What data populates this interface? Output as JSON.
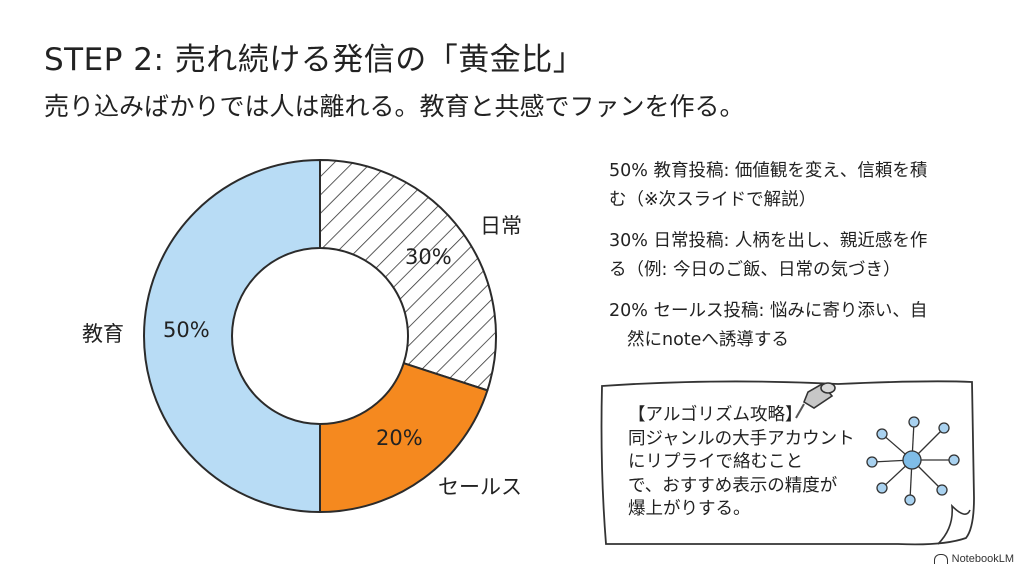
{
  "slide": {
    "title": "STEP 2: 売れ続ける発信の「黄金比」",
    "subtitle": "売り込みばかりでは人は離れる。教育と共感でファンを作る。"
  },
  "chart_data": {
    "type": "pie",
    "donut": true,
    "categories": [
      "教育",
      "日常",
      "セールス"
    ],
    "values": [
      50,
      30,
      20
    ],
    "value_labels": [
      "50%",
      "30%",
      "20%"
    ],
    "colors": [
      "#b8dcf5",
      "hatch",
      "#f5891f"
    ]
  },
  "notes": [
    {
      "lines": [
        "50% 教育投稿: 価値観を変え、信頼を積",
        "む（※次スライドで解説）"
      ]
    },
    {
      "lines": [
        "30% 日常投稿: 人柄を出し、親近感を作",
        "る（例: 今日のご飯、日常の気づき）"
      ]
    },
    {
      "lines": [
        "20% セールス投稿: 悩みに寄り添い、自",
        "然にnoteへ誘導する"
      ]
    }
  ],
  "sticky_note": {
    "lines": [
      "【アルゴリズム攻略】",
      "同ジャンルの大手アカウント",
      "にリプライで絡むこと",
      "で、おすすめ表示の精度が",
      "爆上がりする。"
    ],
    "icons": [
      "pushpin-icon",
      "network-icon"
    ]
  },
  "branding": {
    "label": "NotebookLM"
  }
}
